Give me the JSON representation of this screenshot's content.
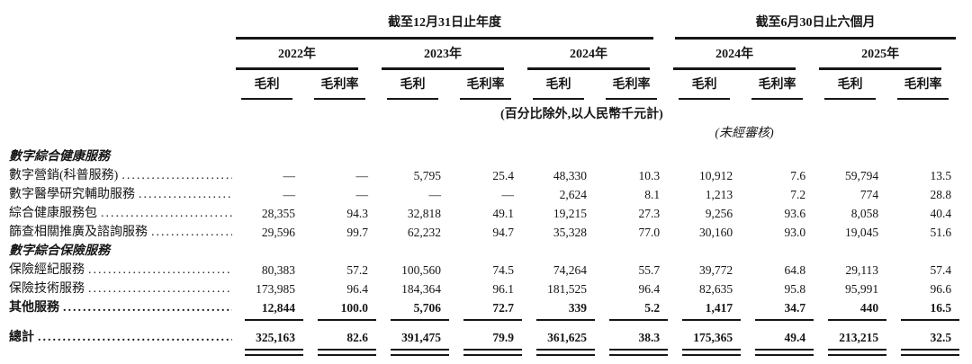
{
  "table": {
    "period_groups": [
      {
        "label": "截至12月31日止年度",
        "years": [
          {
            "label": "2022年"
          },
          {
            "label": "2023年"
          },
          {
            "label": "2024年"
          }
        ]
      },
      {
        "label": "截至6月30日止六個月",
        "years": [
          {
            "label": "2024年"
          },
          {
            "label": "2025年"
          }
        ]
      }
    ],
    "col_subheaders": {
      "gross_profit": "毛利",
      "gross_margin": "毛利率"
    },
    "unit_note": "(百分比除外,以人民幣千元計)",
    "unaudited_note": "(未經審核)",
    "rows": [
      {
        "type": "section",
        "label": "數字綜合健康服務"
      },
      {
        "type": "data",
        "label": "數字營銷(科普服務)",
        "values": [
          "—",
          "—",
          "5,795",
          "25.4",
          "48,330",
          "10.3",
          "10,912",
          "7.6",
          "59,794",
          "13.5"
        ]
      },
      {
        "type": "data",
        "label": "數字醫學研究輔助服務",
        "values": [
          "—",
          "—",
          "—",
          "—",
          "2,624",
          "8.1",
          "1,213",
          "7.2",
          "774",
          "28.8"
        ]
      },
      {
        "type": "data",
        "label": "綜合健康服務包",
        "values": [
          "28,355",
          "94.3",
          "32,818",
          "49.1",
          "19,215",
          "27.3",
          "9,256",
          "93.6",
          "8,058",
          "40.4"
        ]
      },
      {
        "type": "data",
        "label": "篩查相關推廣及諮詢服務",
        "values": [
          "29,596",
          "99.7",
          "62,232",
          "94.7",
          "35,328",
          "77.0",
          "30,160",
          "93.0",
          "19,045",
          "51.6"
        ]
      },
      {
        "type": "section",
        "label": "數字綜合保險服務"
      },
      {
        "type": "data",
        "label": "保險經紀服務",
        "values": [
          "80,383",
          "57.2",
          "100,560",
          "74.5",
          "74,264",
          "55.7",
          "39,772",
          "64.8",
          "29,113",
          "57.4"
        ]
      },
      {
        "type": "data",
        "label": "保險技術服務",
        "values": [
          "173,985",
          "96.4",
          "184,364",
          "96.1",
          "181,525",
          "96.4",
          "82,635",
          "95.8",
          "95,991",
          "96.6"
        ]
      },
      {
        "type": "subtotal",
        "label": "其他服務",
        "values": [
          "12,844",
          "100.0",
          "5,706",
          "72.7",
          "339",
          "5.2",
          "1,417",
          "34.7",
          "440",
          "16.5"
        ]
      },
      {
        "type": "total",
        "label": "總計",
        "values": [
          "325,163",
          "82.6",
          "391,475",
          "79.9",
          "361,625",
          "38.3",
          "175,365",
          "49.4",
          "213,215",
          "32.5"
        ]
      }
    ]
  }
}
